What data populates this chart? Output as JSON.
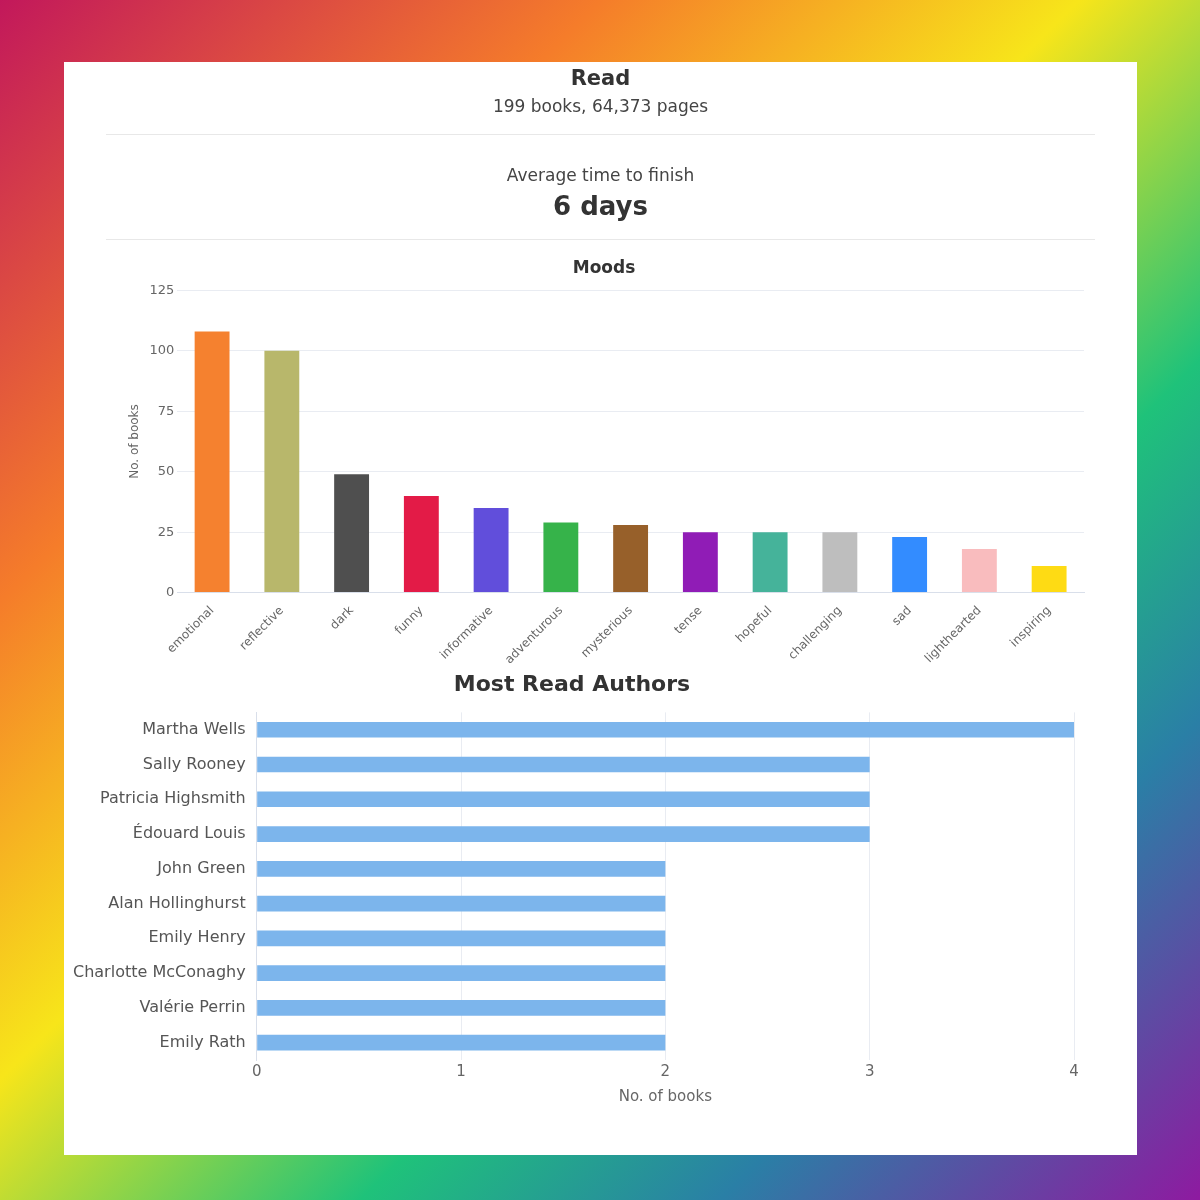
{
  "chart_data": [
    {
      "type": "other",
      "title": "Read",
      "subtitle": "199 books, 64,373 pages",
      "annotations": [
        "Average time to finish",
        "6 days"
      ]
    },
    {
      "type": "bar",
      "title": "Moods",
      "ylabel": "No. of books",
      "categories": [
        "emotional",
        "reflective",
        "dark",
        "funny",
        "informative",
        "adventurous",
        "mysterious",
        "tense",
        "hopeful",
        "challenging",
        "sad",
        "lighthearted",
        "inspiring"
      ],
      "values": [
        108,
        100,
        49,
        40,
        35,
        29,
        28,
        25,
        25,
        25,
        23,
        18,
        11
      ],
      "colors": [
        "#f5812f",
        "#b8b76b",
        "#4f4f4f",
        "#e31b47",
        "#614edb",
        "#36b34a",
        "#97602a",
        "#901cb6",
        "#45b39a",
        "#bebebe",
        "#338cff",
        "#f9bcbe",
        "#fedb14"
      ],
      "ylim": [
        0,
        125
      ],
      "yticks": [
        0,
        25,
        50,
        75,
        100,
        125
      ],
      "grid": "y"
    },
    {
      "type": "bar",
      "orientation": "horizontal",
      "title": "Most Read Authors",
      "xlabel": "No. of books",
      "categories": [
        "Martha Wells",
        "Sally Rooney",
        "Patricia Highsmith",
        "Édouard Louis",
        "John Green",
        "Alan Hollinghurst",
        "Emily Henry",
        "Charlotte McConaghy",
        "Valérie Perrin",
        "Emily Rath"
      ],
      "values": [
        4,
        3,
        3,
        3,
        2,
        2,
        2,
        2,
        2,
        2
      ],
      "color": "#7cb5ec",
      "xlim": [
        0,
        4
      ],
      "xticks": [
        0,
        1,
        2,
        3,
        4
      ],
      "grid": "x"
    }
  ]
}
